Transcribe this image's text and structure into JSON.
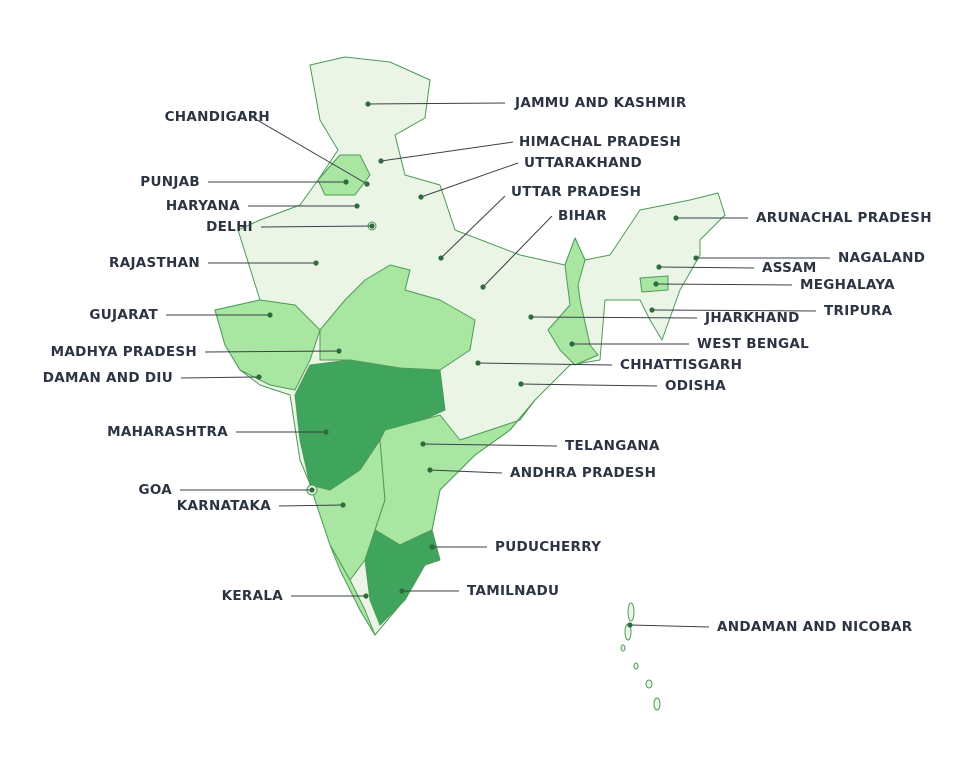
{
  "labels": [
    "JAMMU AND KASHMIR",
    "HIMACHAL PRADESH",
    "UTTARAKHAND",
    "UTTAR PRADESH",
    "BIHAR",
    "ARUNACHAL PRADESH",
    "NAGALAND",
    "ASSAM",
    "MEGHALAYA",
    "TRIPURA",
    "JHARKHAND",
    "WEST BENGAL",
    "CHHATTISGARH",
    "ODISHA",
    "TELANGANA",
    "ANDHRA PRADESH",
    "PUDUCHERRY",
    "TAMILNADU",
    "ANDAMAN AND NICOBAR",
    "CHANDIGARH",
    "PUNJAB",
    "HARYANA",
    "DELHI",
    "RAJASTHAN",
    "GUJARAT",
    "MADHYA PRADESH",
    "DAMAN AND DIU",
    "MAHARASHTRA",
    "GOA",
    "KARNATAKA",
    "KERALA"
  ]
}
